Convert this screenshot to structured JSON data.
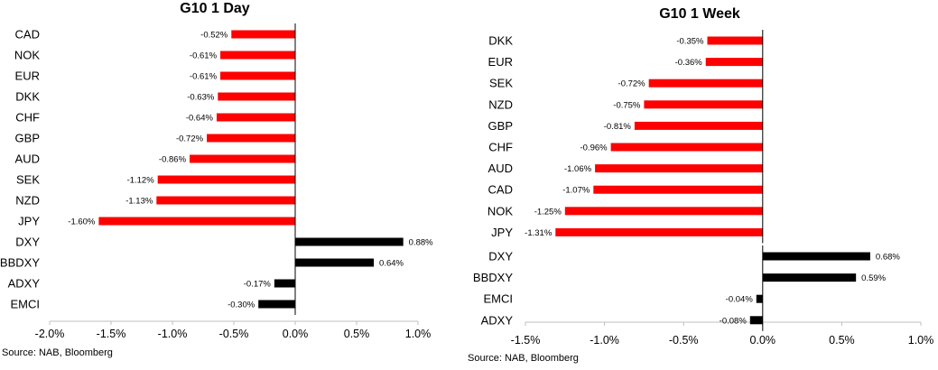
{
  "colors": {
    "negative": "#ff0000",
    "positive": "#000000",
    "axis": "#bfbfbf",
    "zero_line": "#000000"
  },
  "chart_data": [
    {
      "type": "bar",
      "orientation": "horizontal",
      "title": "G10 1 Day",
      "source": "Source: NAB, Bloomberg",
      "xlim": [
        -0.02,
        0.01
      ],
      "ticks": [
        "-2.0%",
        "-1.5%",
        "-1.0%",
        "-0.5%",
        "0.0%",
        "0.5%",
        "1.0%"
      ],
      "groups": [
        {
          "color_key": "negative",
          "categories": [
            "CAD",
            "NOK",
            "EUR",
            "DKK",
            "CHF",
            "GBP",
            "AUD",
            "SEK",
            "NZD",
            "JPY"
          ],
          "values": [
            -0.0052,
            -0.0061,
            -0.0061,
            -0.0063,
            -0.0064,
            -0.0072,
            -0.0086,
            -0.0112,
            -0.0113,
            -0.016
          ],
          "labels": [
            "-0.52%",
            "-0.61%",
            "-0.61%",
            "-0.63%",
            "-0.64%",
            "-0.72%",
            "-0.86%",
            "-1.12%",
            "-1.13%",
            "-1.60%"
          ]
        },
        {
          "color_key": "positive",
          "categories": [
            "DXY",
            "BBDXY",
            "ADXY",
            "EMCI"
          ],
          "values": [
            0.0088,
            0.0064,
            -0.0017,
            -0.003
          ],
          "labels": [
            "0.88%",
            "0.64%",
            "-0.17%",
            "-0.30%"
          ]
        }
      ]
    },
    {
      "type": "bar",
      "orientation": "horizontal",
      "title": "G10 1 Week",
      "source": "Source: NAB, Bloomberg",
      "xlim": [
        -0.015,
        0.01
      ],
      "ticks": [
        "-1.5%",
        "-1.0%",
        "-0.5%",
        "0.0%",
        "0.5%",
        "1.0%"
      ],
      "groups": [
        {
          "color_key": "negative",
          "categories": [
            "DKK",
            "EUR",
            "SEK",
            "NZD",
            "GBP",
            "CHF",
            "AUD",
            "CAD",
            "NOK",
            "JPY"
          ],
          "values": [
            -0.0035,
            -0.0036,
            -0.0072,
            -0.0075,
            -0.0081,
            -0.0096,
            -0.0106,
            -0.0107,
            -0.0125,
            -0.0131
          ],
          "labels": [
            "-0.35%",
            "-0.36%",
            "-0.72%",
            "-0.75%",
            "-0.81%",
            "-0.96%",
            "-1.06%",
            "-1.07%",
            "-1.25%",
            "-1.31%"
          ]
        },
        {
          "color_key": "positive",
          "categories": [
            "DXY",
            "BBDXY",
            "EMCI",
            "ADXY"
          ],
          "values": [
            0.0068,
            0.0059,
            -0.0004,
            -0.0008
          ],
          "labels": [
            "0.68%",
            "0.59%",
            "-0.04%",
            "-0.08%"
          ]
        }
      ]
    }
  ]
}
